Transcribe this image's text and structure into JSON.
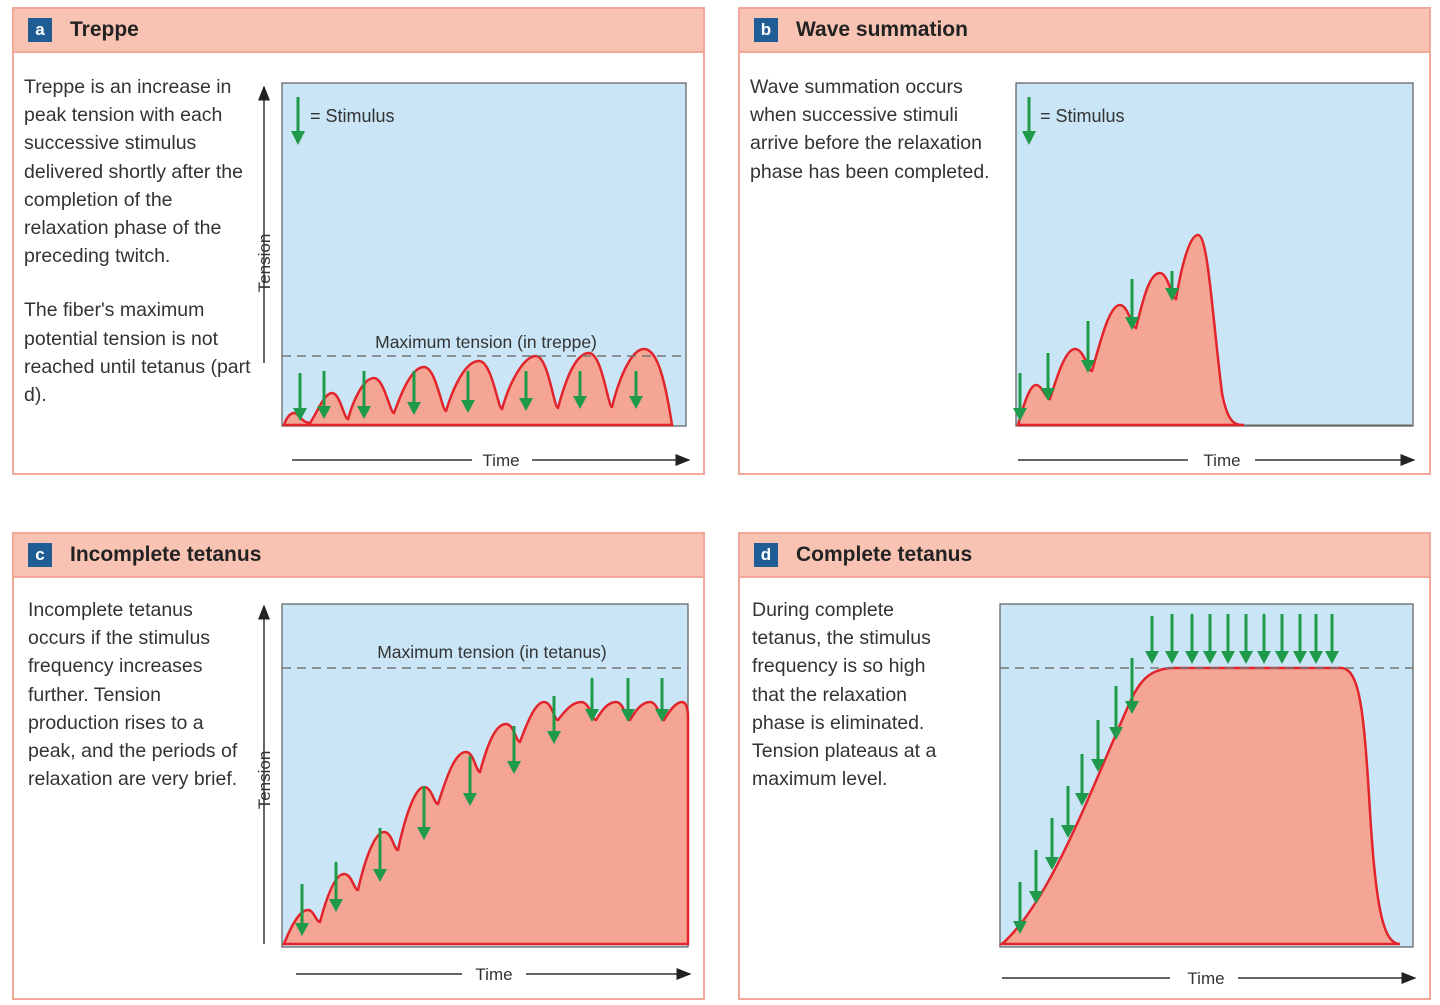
{
  "panels": {
    "a": {
      "letter": "a",
      "title": "Treppe",
      "description": [
        "Treppe is an increase in peak tension with each successive stimulus delivered shortly after the completion of the relaxation phase of the preceding twitch.",
        "The fiber's maximum potential tension is not reached until tetanus (part d)."
      ],
      "legend": "= Stimulus",
      "max_label": "Maximum tension (in treppe)",
      "x_label": "Time",
      "y_label": "Tension"
    },
    "b": {
      "letter": "b",
      "title": "Wave summation",
      "description": [
        "Wave summation occurs when successive stimuli arrive before the relaxation phase has been completed."
      ],
      "legend": "= Stimulus",
      "x_label": "Time"
    },
    "c": {
      "letter": "c",
      "title": "Incomplete tetanus",
      "description": [
        "Incomplete tetanus occurs if the stimulus frequency increases further. Tension production rises to a peak, and the periods of relaxation are very brief."
      ],
      "max_label": "Maximum tension (in tetanus)",
      "x_label": "Time",
      "y_label": "Tension"
    },
    "d": {
      "letter": "d",
      "title": "Complete tetanus",
      "description": [
        "During complete tetanus, the stimulus frequency is so high that the relaxation phase is eliminated. Tension plateaus at a maximum level."
      ],
      "x_label": "Time"
    }
  },
  "colors": {
    "header": "#f8c3b3",
    "border": "#f2a898",
    "badge": "#1f5d94",
    "plot_bg": "#c9e5f6",
    "curve_fill": "#f4a594",
    "curve_line": "#e2242b",
    "stimulus": "#1e9a4a"
  }
}
